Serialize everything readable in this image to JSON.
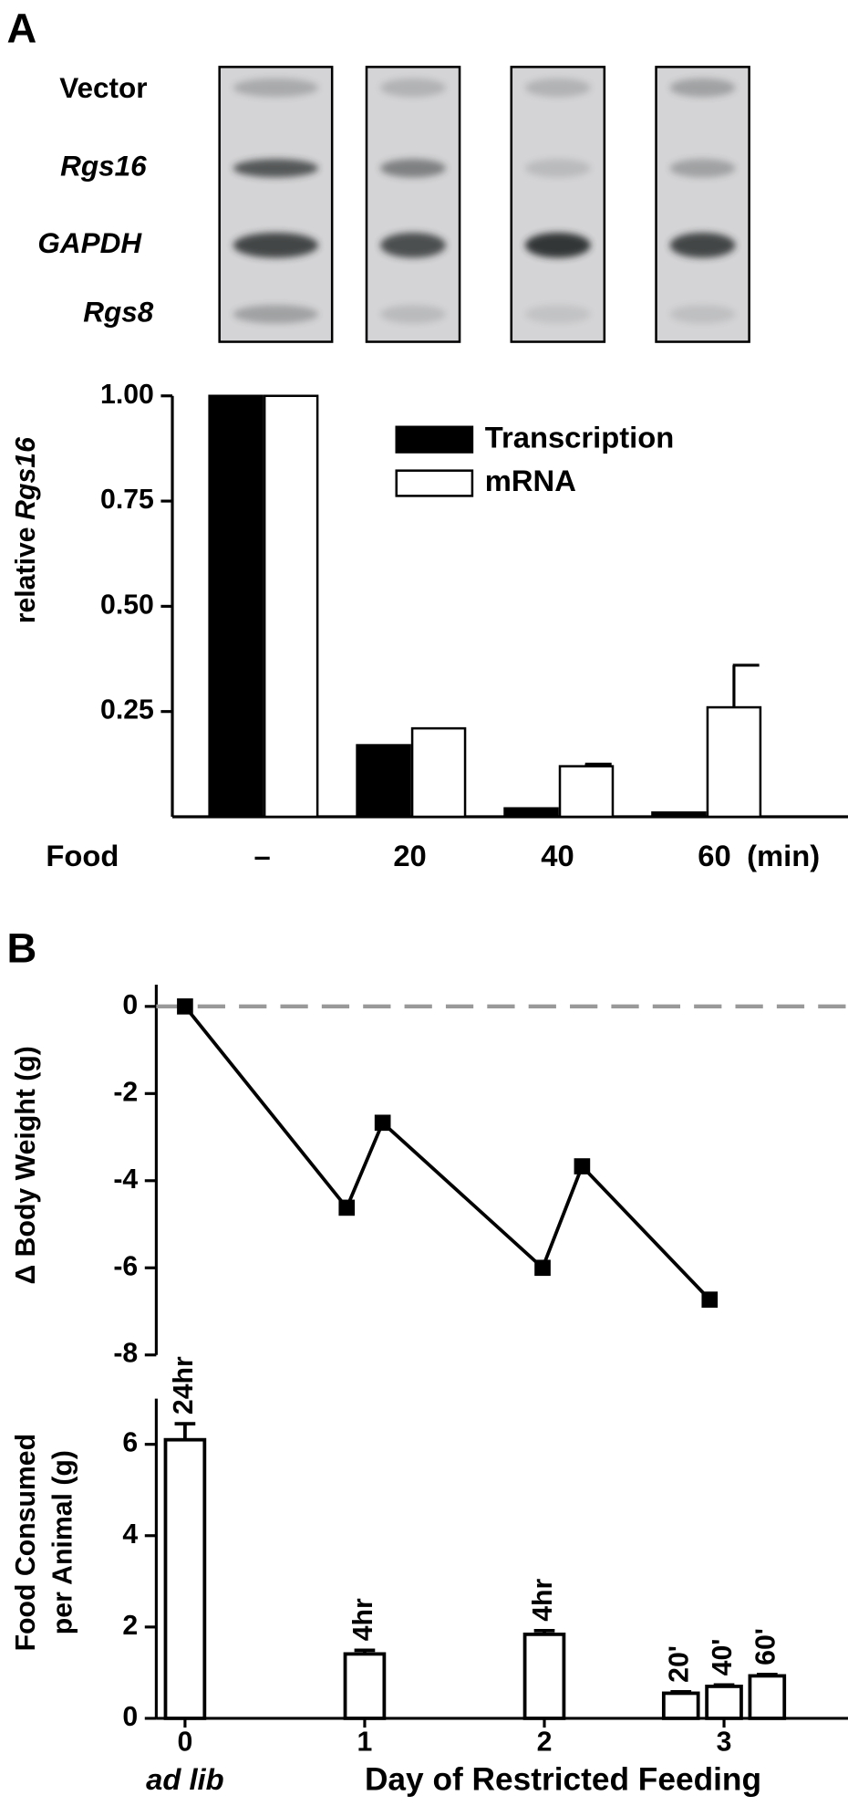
{
  "panels": [
    "A",
    "B"
  ],
  "blot": {
    "labels": [
      "Vector",
      "Rgs16",
      "GAPDH",
      "Rgs8"
    ]
  },
  "chart_data": [
    {
      "type": "bar",
      "x_label": "Food",
      "x_unit": "(min)",
      "y_label": "relative",
      "y_label_italic": "Rgs16",
      "categories": [
        "–",
        "20",
        "40",
        "60"
      ],
      "series": [
        {
          "name": "Transcription",
          "color": "#000000",
          "values": [
            1.0,
            0.17,
            0.02,
            0.01
          ]
        },
        {
          "name": "mRNA",
          "color": "#ffffff",
          "values": [
            1.0,
            0.21,
            0.12,
            0.26
          ],
          "errors": [
            null,
            null,
            0.005,
            0.1
          ]
        }
      ],
      "ylim": [
        0,
        1.0
      ],
      "yticks": [
        {
          "value": 0.25,
          "label": "0.25"
        },
        {
          "value": 0.5,
          "label": "0.50"
        },
        {
          "value": 0.75,
          "label": "0.75"
        },
        {
          "value": 1.0,
          "label": "1.00"
        }
      ],
      "legend_position": "upper right"
    },
    {
      "type": "line",
      "y_label": "Δ Body Weight (g)",
      "series": [
        {
          "color": "#000000",
          "x": [
            0,
            0.9,
            1.1,
            1.99,
            2.21,
            2.92
          ],
          "values": [
            0,
            -4.62,
            -2.67,
            -6.0,
            -3.67,
            -6.73
          ]
        }
      ],
      "xlim": [
        -0.16,
        3.69
      ],
      "ylim": [
        -8,
        0.5
      ],
      "yticks": [
        0,
        -2,
        -4,
        -6,
        -8
      ],
      "reference_line": {
        "value": 0,
        "color": "#999999",
        "style": "dashed"
      }
    },
    {
      "type": "bar",
      "x_label": "Day of Restricted Feeding",
      "y_label": [
        "Food Consumed",
        "per Animal (g)"
      ],
      "series": [
        {
          "color": "#ffffff",
          "x": [
            0,
            1,
            2,
            2.76,
            3,
            3.24
          ],
          "values": [
            6.1,
            1.41,
            1.84,
            0.55,
            0.7,
            0.93
          ],
          "errors": [
            0.35,
            0.08,
            0.08,
            0.03,
            0.03,
            0.03
          ],
          "bar_labels": [
            "24hr",
            "4hr",
            "4hr",
            "20'",
            "40'",
            "60'"
          ]
        }
      ],
      "xlim": [
        -0.16,
        3.69
      ],
      "xticks": [
        0,
        1,
        2,
        3
      ],
      "x_sublabels": [
        {
          "value": 0,
          "label": "ad lib"
        }
      ],
      "ylim": [
        0,
        7.0
      ],
      "yticks": [
        0,
        2,
        4,
        6
      ]
    }
  ]
}
